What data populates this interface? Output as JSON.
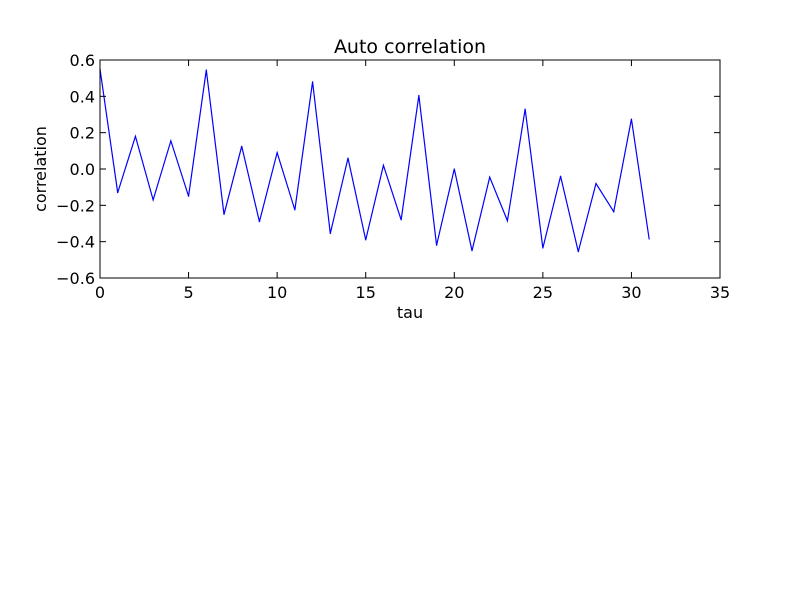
{
  "chart_data": {
    "type": "line",
    "title": "Auto correlation",
    "xlabel": "tau",
    "ylabel": "correlation",
    "xlim": [
      0,
      35
    ],
    "ylim": [
      -0.6,
      0.6
    ],
    "xticks": [
      0,
      5,
      10,
      15,
      20,
      25,
      30,
      35
    ],
    "xtick_labels": [
      "0",
      "5",
      "10",
      "15",
      "20",
      "25",
      "30",
      "35"
    ],
    "yticks": [
      -0.6,
      -0.4,
      -0.2,
      0.0,
      0.2,
      0.4,
      0.6
    ],
    "ytick_labels": [
      "−0.6",
      "−0.4",
      "−0.2",
      "0.0",
      "0.2",
      "0.4",
      "0.6"
    ],
    "grid": false,
    "series": [
      {
        "color": "#0000ff",
        "x": [
          0,
          1,
          2,
          3,
          4,
          5,
          6,
          7,
          8,
          9,
          10,
          11,
          12,
          13,
          14,
          15,
          16,
          17,
          18,
          19,
          20,
          21,
          22,
          23,
          24,
          25,
          26,
          27,
          28,
          29,
          30,
          31
        ],
        "y": [
          0.55,
          -0.13,
          0.18,
          -0.17,
          0.155,
          -0.15,
          0.545,
          -0.25,
          0.125,
          -0.29,
          0.09,
          -0.225,
          0.48,
          -0.355,
          0.06,
          -0.39,
          0.02,
          -0.28,
          0.405,
          -0.42,
          0.0,
          -0.45,
          -0.045,
          -0.285,
          0.33,
          -0.435,
          -0.04,
          -0.455,
          -0.08,
          -0.235,
          0.275,
          -0.385
        ]
      }
    ]
  }
}
